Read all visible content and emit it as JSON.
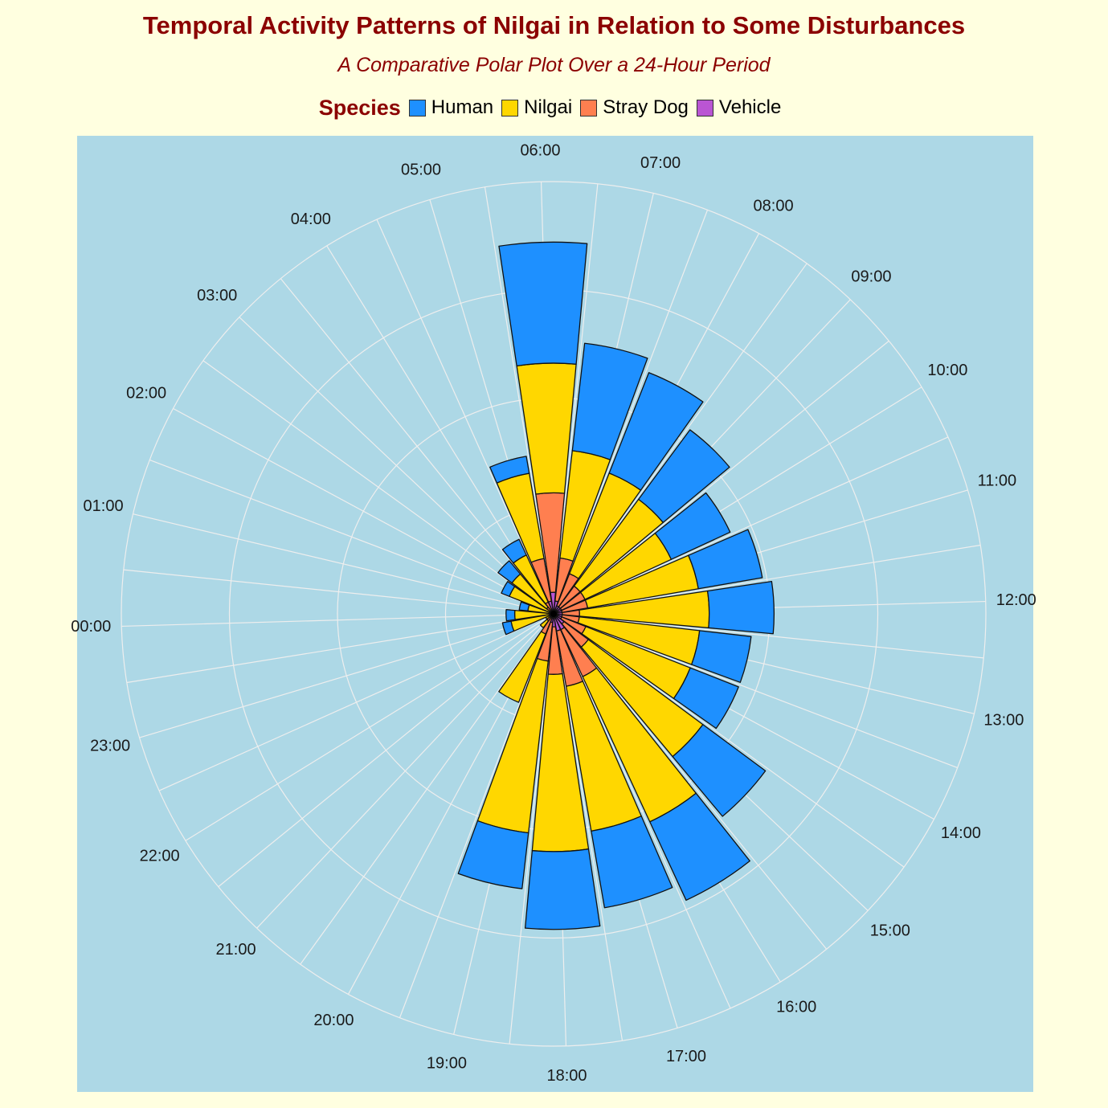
{
  "chart_data": {
    "type": "bar",
    "subtype": "stacked-polar",
    "title": "Temporal Activity Patterns of Nilgai in Relation to Some Disturbances",
    "subtitle": "A Comparative Polar Plot Over a 24-Hour Period",
    "legend_title": "Species",
    "legend_position": "top",
    "grid": true,
    "categories": [
      "00:00",
      "01:00",
      "02:00",
      "03:00",
      "04:00",
      "05:00",
      "06:00",
      "07:00",
      "08:00",
      "09:00",
      "10:00",
      "11:00",
      "12:00",
      "13:00",
      "14:00",
      "15:00",
      "16:00",
      "17:00",
      "18:00",
      "19:00",
      "20:00",
      "21:00",
      "22:00",
      "23:00"
    ],
    "series": [
      {
        "name": "Vehicle",
        "color": "#BA55D3",
        "values": [
          0,
          0,
          0,
          0,
          0,
          3,
          5,
          3,
          2,
          2,
          2,
          2,
          2,
          2,
          2,
          3,
          4,
          4,
          3,
          2,
          1,
          0,
          0,
          0
        ]
      },
      {
        "name": "Stray Dog",
        "color": "#FF7F50",
        "values": [
          1,
          0,
          1,
          2,
          3,
          10,
          23,
          10,
          8,
          6,
          6,
          6,
          4,
          4,
          6,
          7,
          12,
          13,
          11,
          9,
          4,
          2,
          1,
          0
        ]
      },
      {
        "name": "Nilgai",
        "color": "#FFD700",
        "values": [
          8,
          6,
          10,
          10,
          12,
          20,
          30,
          25,
          25,
          25,
          22,
          26,
          30,
          28,
          26,
          33,
          37,
          34,
          41,
          40,
          17,
          2,
          1,
          10
        ]
      },
      {
        "name": "Human",
        "color": "#1E90FF",
        "values": [
          2,
          2,
          2,
          4,
          4,
          4,
          28,
          25,
          25,
          20,
          15,
          15,
          15,
          12,
          12,
          18,
          20,
          18,
          18,
          13,
          0,
          0,
          0,
          2
        ]
      }
    ],
    "ylim": [
      0,
      100
    ],
    "start_angle_hour": "00:00",
    "direction": "clockwise"
  }
}
